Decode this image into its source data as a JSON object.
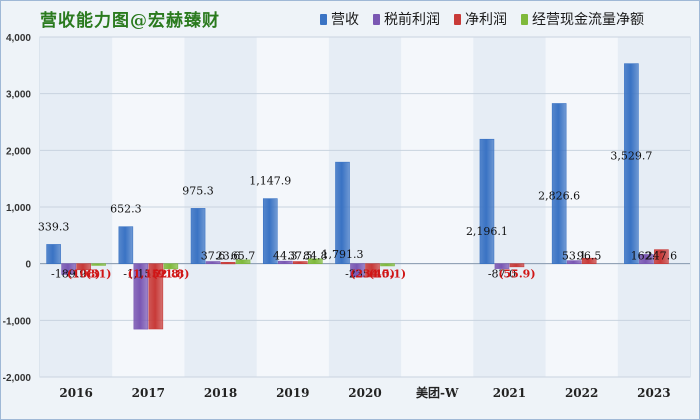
{
  "title": "营收能力图@宏赫臻财",
  "colors": {
    "营收": "#3a73c4",
    "税前利润": "#7a57b3",
    "净利润": "#c83a38",
    "经营现金流量净额": "#7fb93b",
    "negative_label": "#d01515",
    "label": "#111111"
  },
  "chart_data": {
    "type": "bar",
    "title": "营收能力图@宏赫臻财",
    "categories": [
      "2016",
      "2017",
      "2018",
      "2019",
      "2020",
      "美团-W",
      "2021",
      "2022",
      "2023"
    ],
    "yticks": [
      "4,000",
      "3,000",
      "2,000",
      "1,000",
      "0",
      "-1,000",
      "-2,000"
    ],
    "ylim": [
      -2000,
      4000
    ],
    "series": [
      {
        "name": "营收",
        "values": [
          339.3,
          652.3,
          975.3,
          1147.9,
          1791.3,
          null,
          2196.1,
          2826.6,
          3529.7
        ],
        "labels": [
          "339.3",
          "652.3",
          "975.3",
          "1,147.9",
          "1,791.3",
          "",
          "2,196.1",
          "2,826.6",
          "3,529.7"
        ]
      },
      {
        "name": "税前利润",
        "values": [
          -189.9,
          -1155,
          37.6,
          44.3,
          -235,
          null,
          -87.0,
          53.1,
          162.3
        ],
        "labels": [
          "-189.9",
          "-1,155",
          "37.6",
          "44.3",
          "-235",
          "",
          "-87.0",
          "53.1",
          "162.3"
        ]
      },
      {
        "name": "净利润",
        "values": [
          -108,
          -1152.8,
          23.6,
          37.5,
          -234.5,
          null,
          -55.9,
          96.5,
          247.6
        ],
        "labels": [
          "(108)",
          "(1,152.8)",
          "23.6",
          "37.5",
          "(234.5)",
          "",
          "(55.9)",
          "96.5",
          "247.6"
        ]
      },
      {
        "name": "经营现金流量净额",
        "values": [
          -31,
          -91.8,
          65.7,
          84.8,
          -40.1,
          null,
          null,
          null,
          null
        ],
        "labels": [
          "(31)",
          "(91.8)",
          "65.7",
          "84.8",
          "(40.1)",
          "",
          "",
          "",
          ""
        ]
      }
    ]
  }
}
